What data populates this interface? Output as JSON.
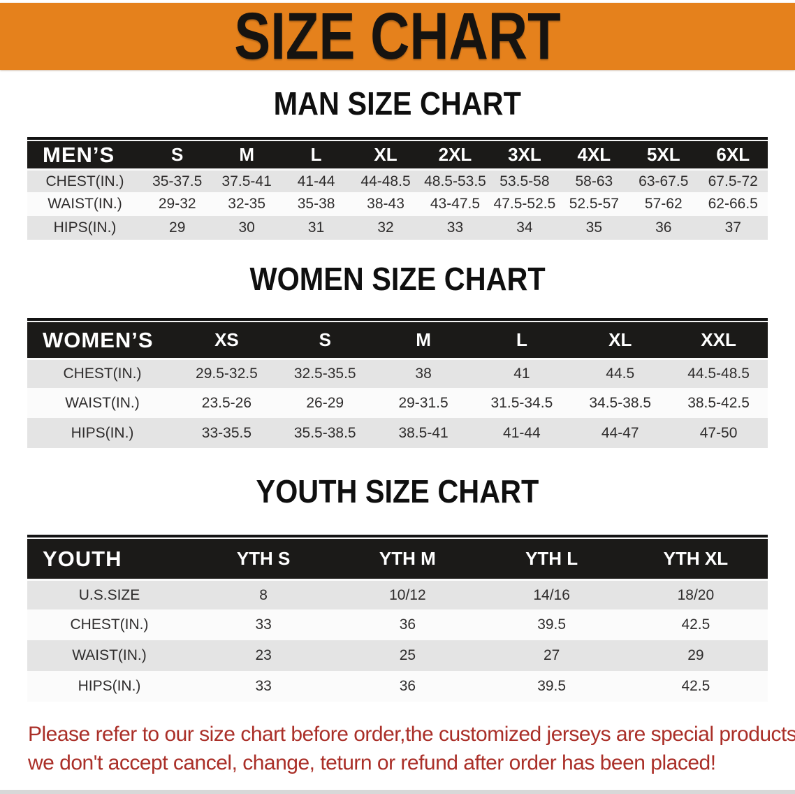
{
  "banner": {
    "title": "SIZE CHART"
  },
  "colors": {
    "banner_bg": "#e5811c",
    "banner_text": "#161310",
    "table_header_bg": "#1b1a18",
    "table_header_text": "#ffffff",
    "row_shaded": "#e4e4e4",
    "row_plain": "#fbfbfb",
    "body_text": "#2e2c2c",
    "disclaimer_text": "#aa2f28"
  },
  "sections": [
    {
      "id": "men",
      "title": "MAN SIZE CHART",
      "table": {
        "header_label": "MEN’S",
        "columns": [
          "S",
          "M",
          "L",
          "XL",
          "2XL",
          "3XL",
          "4XL",
          "5XL",
          "6XL"
        ],
        "rows": [
          {
            "label": "CHEST(IN.)",
            "values": [
              "35-37.5",
              "37.5-41",
              "41-44",
              "44-48.5",
              "48.5-53.5",
              "53.5-58",
              "58-63",
              "63-67.5",
              "67.5-72"
            ]
          },
          {
            "label": "WAIST(IN.)",
            "values": [
              "29-32",
              "32-35",
              "35-38",
              "38-43",
              "43-47.5",
              "47.5-52.5",
              "52.5-57",
              "57-62",
              "62-66.5"
            ]
          },
          {
            "label": "HIPS(IN.)",
            "values": [
              "29",
              "30",
              "31",
              "32",
              "33",
              "34",
              "35",
              "36",
              "37"
            ]
          }
        ]
      }
    },
    {
      "id": "women",
      "title": "WOMEN SIZE CHART",
      "table": {
        "header_label": "WOMEN’S",
        "columns": [
          "XS",
          "S",
          "M",
          "L",
          "XL",
          "XXL"
        ],
        "rows": [
          {
            "label": "CHEST(IN.)",
            "values": [
              "29.5-32.5",
              "32.5-35.5",
              "38",
              "41",
              "44.5",
              "44.5-48.5"
            ]
          },
          {
            "label": "WAIST(IN.)",
            "values": [
              "23.5-26",
              "26-29",
              "29-31.5",
              "31.5-34.5",
              "34.5-38.5",
              "38.5-42.5"
            ]
          },
          {
            "label": "HIPS(IN.)",
            "values": [
              "33-35.5",
              "35.5-38.5",
              "38.5-41",
              "41-44",
              "44-47",
              "47-50"
            ]
          }
        ]
      }
    },
    {
      "id": "youth",
      "title": "YOUTH SIZE CHART",
      "table": {
        "header_label": "YOUTH",
        "columns": [
          "YTH S",
          "YTH M",
          "YTH L",
          "YTH XL"
        ],
        "rows": [
          {
            "label": "U.S.SIZE",
            "values": [
              "8",
              "10/12",
              "14/16",
              "18/20"
            ]
          },
          {
            "label": "CHEST(IN.)",
            "values": [
              "33",
              "36",
              "39.5",
              "42.5"
            ]
          },
          {
            "label": "WAIST(IN.)",
            "values": [
              "23",
              "25",
              "27",
              "29"
            ]
          },
          {
            "label": "HIPS(IN.)",
            "values": [
              "33",
              "36",
              "39.5",
              "42.5"
            ]
          }
        ]
      }
    }
  ],
  "footer": {
    "line1": "Please refer to our size chart before order,the customized jerseys are special products,",
    "line2": "we don't accept cancel, change, teturn or refund after order has been placed!"
  }
}
